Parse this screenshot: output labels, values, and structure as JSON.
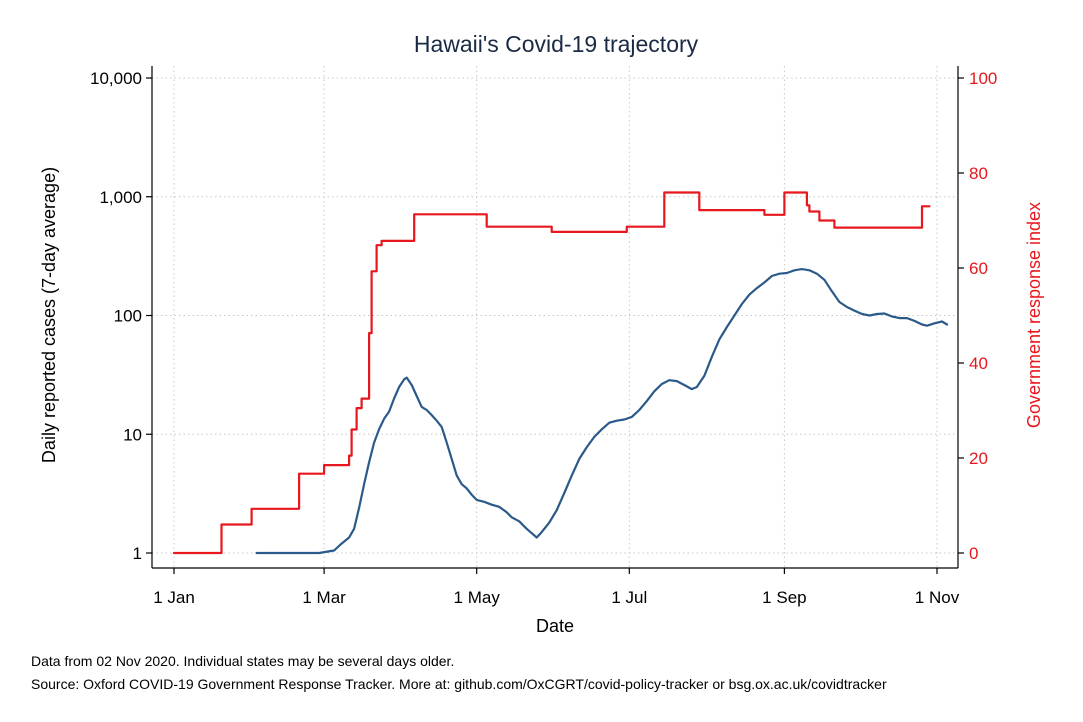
{
  "chart_data": {
    "type": "line",
    "title": "Hawaii's Covid-19 trajectory",
    "xlabel": "Date",
    "ylabel_left": "Daily reported cases (7-day average)",
    "ylabel_right": "Government response index",
    "x_ticks": [
      {
        "label": "1 Jan",
        "date": "2020-01-01"
      },
      {
        "label": "1 Mar",
        "date": "2020-03-01"
      },
      {
        "label": "1 May",
        "date": "2020-05-01"
      },
      {
        "label": "1 Jul",
        "date": "2020-07-01"
      },
      {
        "label": "1 Sep",
        "date": "2020-09-01"
      },
      {
        "label": "1 Nov",
        "date": "2020-11-01"
      }
    ],
    "xlim": [
      "2020-01-01",
      "2020-11-01"
    ],
    "y_left": {
      "scale": "log",
      "ylim": [
        1,
        10000
      ],
      "ticks": [
        {
          "value": 1,
          "label": "1"
        },
        {
          "value": 10,
          "label": "10"
        },
        {
          "value": 100,
          "label": "100"
        },
        {
          "value": 1000,
          "label": "1,000"
        },
        {
          "value": 10000,
          "label": "10,000"
        }
      ]
    },
    "y_right": {
      "scale": "linear",
      "ylim": [
        0,
        100
      ],
      "ticks": [
        {
          "value": 0,
          "label": "0"
        },
        {
          "value": 20,
          "label": "20"
        },
        {
          "value": 40,
          "label": "40"
        },
        {
          "value": 60,
          "label": "60"
        },
        {
          "value": 80,
          "label": "80"
        },
        {
          "value": 100,
          "label": "100"
        }
      ]
    },
    "grid": true,
    "series": [
      {
        "axis": "left",
        "color": "#2b5a8a",
        "step": false,
        "points": [
          [
            "2020-02-03",
            1
          ],
          [
            "2020-02-28",
            1
          ],
          [
            "2020-03-05",
            1.05
          ],
          [
            "2020-03-08",
            1.2
          ],
          [
            "2020-03-11",
            1.35
          ],
          [
            "2020-03-13",
            1.6
          ],
          [
            "2020-03-15",
            2.4
          ],
          [
            "2020-03-17",
            3.8
          ],
          [
            "2020-03-19",
            5.8
          ],
          [
            "2020-03-21",
            8.5
          ],
          [
            "2020-03-23",
            11
          ],
          [
            "2020-03-25",
            13.5
          ],
          [
            "2020-03-27",
            15.5
          ],
          [
            "2020-03-29",
            20
          ],
          [
            "2020-03-31",
            25
          ],
          [
            "2020-04-02",
            29
          ],
          [
            "2020-04-03",
            30
          ],
          [
            "2020-04-05",
            26
          ],
          [
            "2020-04-07",
            21
          ],
          [
            "2020-04-09",
            17
          ],
          [
            "2020-04-11",
            16
          ],
          [
            "2020-04-13",
            14.5
          ],
          [
            "2020-04-15",
            13
          ],
          [
            "2020-04-17",
            11.5
          ],
          [
            "2020-04-19",
            8.5
          ],
          [
            "2020-04-21",
            6.2
          ],
          [
            "2020-04-23",
            4.5
          ],
          [
            "2020-04-25",
            3.8
          ],
          [
            "2020-04-27",
            3.5
          ],
          [
            "2020-04-29",
            3.1
          ],
          [
            "2020-05-01",
            2.8
          ],
          [
            "2020-05-04",
            2.7
          ],
          [
            "2020-05-07",
            2.55
          ],
          [
            "2020-05-10",
            2.45
          ],
          [
            "2020-05-13",
            2.2
          ],
          [
            "2020-05-15",
            2.0
          ],
          [
            "2020-05-18",
            1.85
          ],
          [
            "2020-05-21",
            1.6
          ],
          [
            "2020-05-25",
            1.35
          ],
          [
            "2020-05-27",
            1.5
          ],
          [
            "2020-05-30",
            1.8
          ],
          [
            "2020-06-02",
            2.3
          ],
          [
            "2020-06-05",
            3.2
          ],
          [
            "2020-06-08",
            4.5
          ],
          [
            "2020-06-11",
            6.2
          ],
          [
            "2020-06-14",
            7.8
          ],
          [
            "2020-06-17",
            9.5
          ],
          [
            "2020-06-20",
            11
          ],
          [
            "2020-06-23",
            12.5
          ],
          [
            "2020-06-26",
            13
          ],
          [
            "2020-06-29",
            13.3
          ],
          [
            "2020-07-02",
            14
          ],
          [
            "2020-07-05",
            16
          ],
          [
            "2020-07-08",
            19
          ],
          [
            "2020-07-11",
            23
          ],
          [
            "2020-07-14",
            26.5
          ],
          [
            "2020-07-17",
            28.5
          ],
          [
            "2020-07-20",
            28
          ],
          [
            "2020-07-23",
            26
          ],
          [
            "2020-07-26",
            24
          ],
          [
            "2020-07-28",
            25
          ],
          [
            "2020-07-31",
            31
          ],
          [
            "2020-08-03",
            45
          ],
          [
            "2020-08-06",
            63
          ],
          [
            "2020-08-09",
            80
          ],
          [
            "2020-08-12",
            100
          ],
          [
            "2020-08-15",
            125
          ],
          [
            "2020-08-18",
            150
          ],
          [
            "2020-08-21",
            170
          ],
          [
            "2020-08-24",
            190
          ],
          [
            "2020-08-27",
            215
          ],
          [
            "2020-08-30",
            225
          ],
          [
            "2020-09-02",
            228
          ],
          [
            "2020-09-05",
            240
          ],
          [
            "2020-09-08",
            246
          ],
          [
            "2020-09-11",
            240
          ],
          [
            "2020-09-14",
            225
          ],
          [
            "2020-09-17",
            200
          ],
          [
            "2020-09-20",
            160
          ],
          [
            "2020-09-23",
            130
          ],
          [
            "2020-09-26",
            118
          ],
          [
            "2020-09-29",
            110
          ],
          [
            "2020-10-02",
            103
          ],
          [
            "2020-10-05",
            100
          ],
          [
            "2020-10-08",
            103
          ],
          [
            "2020-10-11",
            104
          ],
          [
            "2020-10-14",
            98
          ],
          [
            "2020-10-17",
            95
          ],
          [
            "2020-10-20",
            95
          ],
          [
            "2020-10-23",
            90
          ],
          [
            "2020-10-26",
            84
          ],
          [
            "2020-10-28",
            82
          ],
          [
            "2020-10-31",
            86
          ],
          [
            "2020-11-03",
            89
          ],
          [
            "2020-11-05",
            84
          ]
        ]
      },
      {
        "axis": "right",
        "color": "#e8171d",
        "step": true,
        "points": [
          [
            "2020-01-01",
            0
          ],
          [
            "2020-01-20",
            6
          ],
          [
            "2020-02-01",
            9.3
          ],
          [
            "2020-02-20",
            16.7
          ],
          [
            "2020-03-01",
            18.5
          ],
          [
            "2020-03-11",
            20.5
          ],
          [
            "2020-03-12",
            26
          ],
          [
            "2020-03-14",
            30.5
          ],
          [
            "2020-03-16",
            32.5
          ],
          [
            "2020-03-19",
            46.3
          ],
          [
            "2020-03-20",
            59.3
          ],
          [
            "2020-03-22",
            64.8
          ],
          [
            "2020-03-24",
            65.7
          ],
          [
            "2020-04-06",
            71.3
          ],
          [
            "2020-05-05",
            68.7
          ],
          [
            "2020-05-31",
            67.6
          ],
          [
            "2020-06-30",
            68.7
          ],
          [
            "2020-07-15",
            75.9
          ],
          [
            "2020-07-29",
            72.2
          ],
          [
            "2020-08-24",
            71.2
          ],
          [
            "2020-09-01",
            75.9
          ],
          [
            "2020-09-10",
            73.2
          ],
          [
            "2020-09-11",
            71.9
          ],
          [
            "2020-09-15",
            70.0
          ],
          [
            "2020-09-21",
            68.5
          ],
          [
            "2020-10-26",
            73.0
          ],
          [
            "2020-10-29",
            73.0
          ]
        ]
      }
    ]
  },
  "notes": {
    "line1": "Data from 02 Nov 2020. Individual states may be several days older.",
    "line2": "Source: Oxford COVID-19 Government Response Tracker. More at: github.com/OxCGRT/covid-policy-tracker or bsg.ox.ac.uk/covidtracker"
  }
}
